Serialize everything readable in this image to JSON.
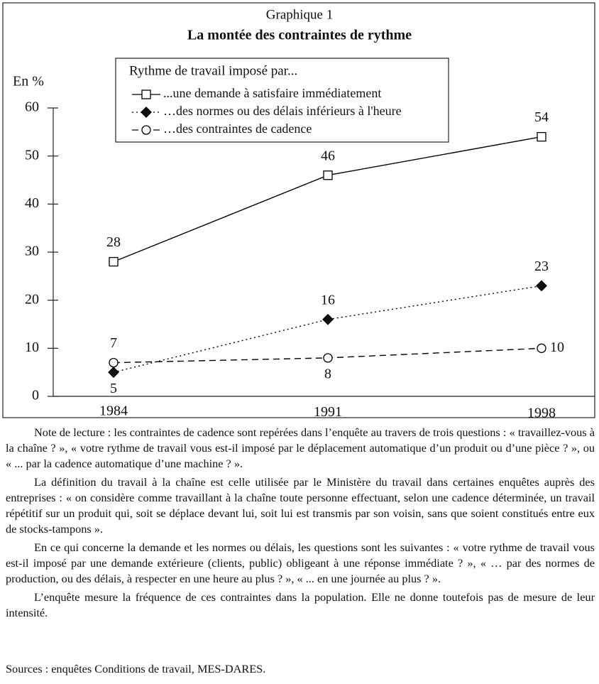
{
  "chart_data": {
    "type": "line",
    "title": "Graphique 1",
    "subtitle": "La montée des contraintes de rythme",
    "y_label": "En %",
    "legend_title": "Rythme de travail imposé par...",
    "categories": [
      "1984",
      "1991",
      "1998"
    ],
    "series": [
      {
        "name": "...une demande à satisfaire immédiatement",
        "color": "#000000",
        "marker": "square",
        "line": "solid",
        "values": [
          28,
          46,
          54
        ]
      },
      {
        "name": "…des normes ou des délais inférieurs à l'heure",
        "color": "#000000",
        "marker": "diamond",
        "line": "dotted",
        "values": [
          5,
          16,
          23
        ]
      },
      {
        "name": "…des contraintes de cadence",
        "color": "#000000",
        "marker": "circle",
        "line": "dashed",
        "values": [
          7,
          8,
          10
        ]
      }
    ],
    "ylim": [
      0,
      60
    ],
    "yticks": [
      0,
      10,
      20,
      30,
      40,
      50,
      60
    ],
    "grid": false,
    "legend": "top"
  },
  "notes": [
    "Note de lecture : les contraintes de cadence sont repérées dans l’enquête au travers de trois questions : « travaillez-vous à la chaîne ? », « votre rythme de travail vous est-il imposé par le déplacement automatique d’un produit ou d’une pièce ? », ou « ... par la cadence automatique d’une machine ? ».",
    "La définition du travail à la chaîne est celle utilisée par le Ministère du travail dans certaines enquêtes auprès des entreprises : « on considère comme travaillant à la chaîne toute personne effectuant, selon une cadence déterminée, un travail répétitif sur un produit qui, soit se déplace devant lui, soit lui est transmis par son voisin, sans que soient constitués entre eux de stocks-tampons ».",
    "En ce qui concerne la demande et les normes ou délais, les questions sont les suivantes : « votre rythme de travail vous est-il imposé par une demande extérieure (clients, public) obligeant à une réponse immédiate ? », « … par des normes de production, ou des délais, à respecter en une heure au plus ? », « ... en une journée au plus ? ».",
    "L’enquête mesure la fréquence de ces contraintes dans la population. Elle ne donne toutefois pas de mesure de leur intensité."
  ],
  "source": "Sources : enquêtes Conditions de travail, MES-DARES."
}
